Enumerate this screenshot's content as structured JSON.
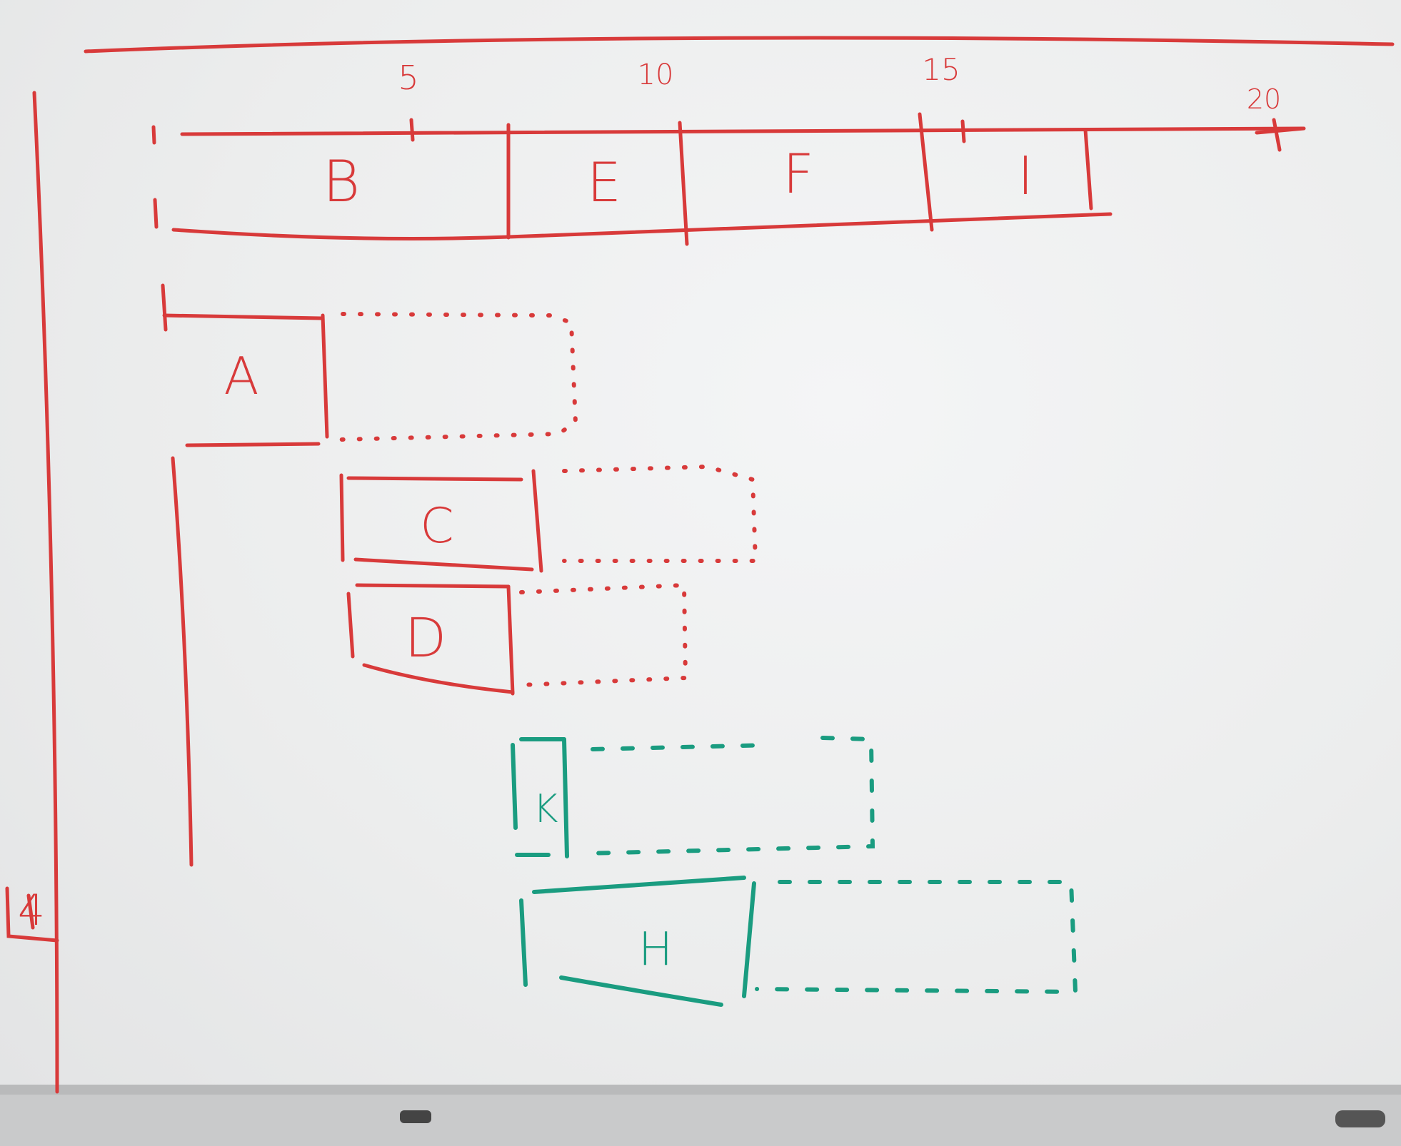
{
  "board": {
    "red_ink": "#d83a3a",
    "green_ink": "#1a9c80",
    "surface": "#eeefef"
  },
  "timeline": {
    "ticks": [
      {
        "label": "5",
        "value": 5
      },
      {
        "label": "10",
        "value": 10
      },
      {
        "label": "15",
        "value": 15
      },
      {
        "label": "20",
        "value": 20
      }
    ],
    "critical_path": [
      {
        "label": "B"
      },
      {
        "label": "E"
      },
      {
        "label": "F"
      },
      {
        "label": "I"
      }
    ]
  },
  "tasks": [
    {
      "label": "A",
      "ink": "red"
    },
    {
      "label": "C",
      "ink": "red"
    },
    {
      "label": "D",
      "ink": "red"
    },
    {
      "label": "K",
      "ink": "green"
    },
    {
      "label": "H",
      "ink": "green"
    }
  ],
  "side_mark": "4"
}
